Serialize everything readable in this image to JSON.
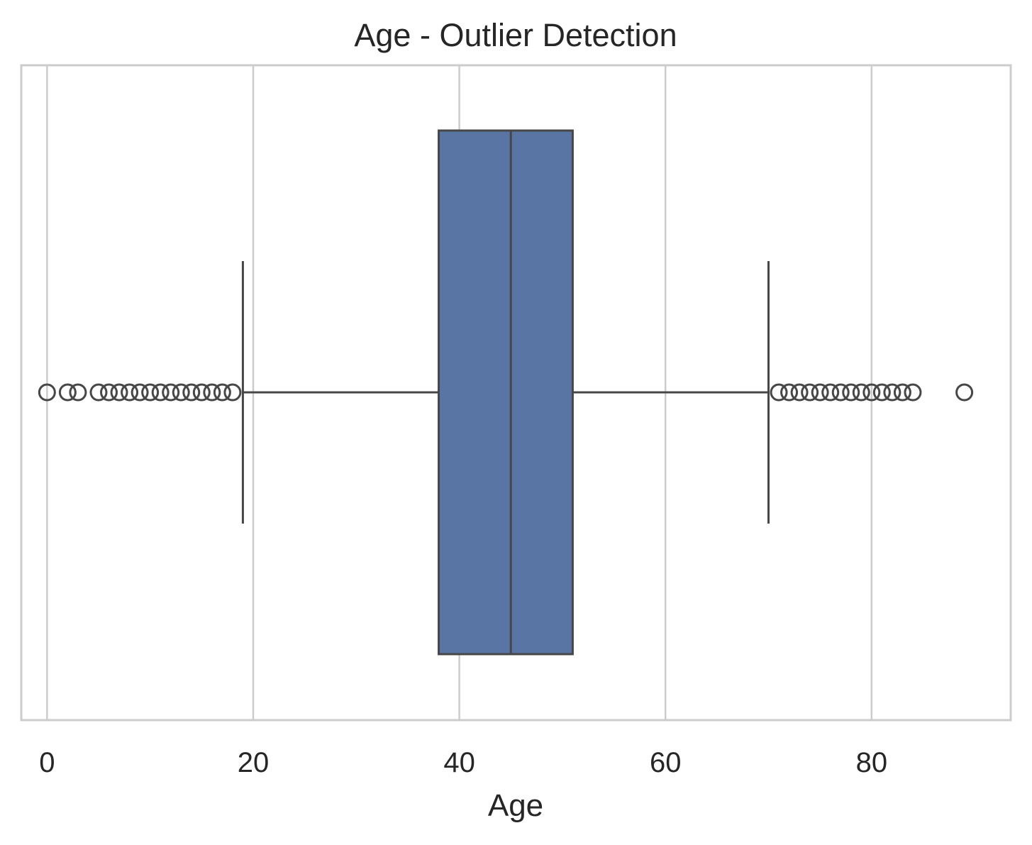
{
  "chart_data": {
    "type": "box",
    "title": "Age - Outlier Detection",
    "xlabel": "Age",
    "ylabel": "",
    "xlim": [
      -2.5,
      93.5
    ],
    "xticks": [
      0,
      20,
      40,
      60,
      80
    ],
    "grid": true,
    "colors": {
      "box_fill": "#5975a4",
      "line": "#474747",
      "grid": "#cccccc",
      "frame": "#cccccc"
    },
    "box": {
      "whisker_low": 19,
      "q1": 38,
      "median": 45,
      "q3": 51,
      "whisker_high": 70
    },
    "outliers": [
      0,
      2,
      3,
      5,
      6,
      7,
      8,
      9,
      10,
      11,
      12,
      13,
      14,
      15,
      16,
      17,
      18,
      71,
      72,
      73,
      74,
      75,
      76,
      77,
      78,
      79,
      80,
      81,
      82,
      83,
      84,
      89
    ]
  }
}
